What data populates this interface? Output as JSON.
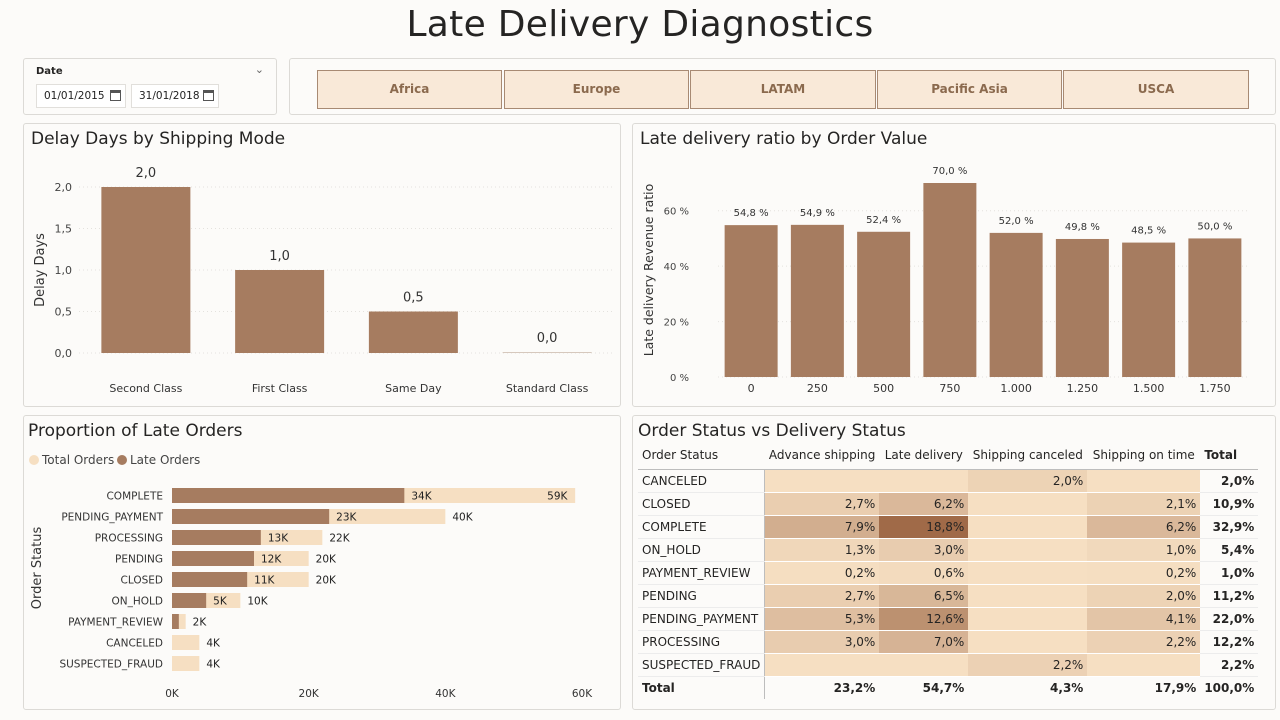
{
  "page": {
    "title": "Late Delivery Diagnostics"
  },
  "date_slicer": {
    "label": "Date",
    "start": "01/01/2015",
    "end": "31/01/2018"
  },
  "regions": [
    "Africa",
    "Europe",
    "LATAM",
    "Pacific Asia",
    "USCA"
  ],
  "colors": {
    "bar": "#a67c60",
    "light": "#f6dfc2",
    "border": "#a88a73"
  },
  "delay_chart": {
    "title": "Delay Days by Shipping Mode",
    "chart_data": {
      "type": "bar",
      "categories": [
        "Second Class",
        "First Class",
        "Same Day",
        "Standard Class"
      ],
      "values": [
        2.0,
        1.0,
        0.5,
        0.0
      ],
      "value_labels": [
        "2,0",
        "1,0",
        "0,5",
        "0,0"
      ],
      "ylabel": "Delay Days",
      "yticks": [
        "0,0",
        "0,5",
        "1,0",
        "1,5",
        "2,0"
      ],
      "ytick_values": [
        0,
        0.5,
        1.0,
        1.5,
        2.0
      ],
      "ylim": [
        0,
        2.0
      ]
    }
  },
  "ratio_chart": {
    "title": "Late delivery ratio by Order Value",
    "chart_data": {
      "type": "bar",
      "categories": [
        "0",
        "250",
        "500",
        "750",
        "1.000",
        "1.250",
        "1.500",
        "1.750"
      ],
      "values": [
        54.8,
        54.9,
        52.4,
        70.0,
        52.0,
        49.8,
        48.5,
        50.0
      ],
      "value_labels": [
        "54,8 %",
        "54,9 %",
        "52,4 %",
        "70,0 %",
        "52,0 %",
        "49,8 %",
        "48,5 %",
        "50,0 %"
      ],
      "ylabel": "Late delivery Revenue ratio",
      "yticks": [
        "0 %",
        "20 %",
        "40 %",
        "60 %"
      ],
      "ytick_values": [
        0,
        20,
        40,
        60
      ],
      "ylim": [
        0,
        70
      ]
    }
  },
  "late_orders_chart": {
    "title": "Proportion of Late Orders",
    "chart_data": {
      "type": "bar",
      "orientation": "horizontal",
      "categories": [
        "COMPLETE",
        "PENDING_PAYMENT",
        "PROCESSING",
        "PENDING",
        "CLOSED",
        "ON_HOLD",
        "PAYMENT_REVIEW",
        "CANCELED",
        "SUSPECTED_FRAUD"
      ],
      "series": [
        {
          "name": "Total Orders",
          "values": [
            59,
            40,
            22,
            20,
            20,
            10,
            2,
            4,
            4
          ],
          "labels": [
            "59K",
            "40K",
            "22K",
            "20K",
            "20K",
            "10K",
            "2K",
            "4K",
            "4K"
          ]
        },
        {
          "name": "Late Orders",
          "values": [
            34,
            23,
            13,
            12,
            11,
            5,
            1,
            0,
            0
          ],
          "labels": [
            "34K",
            "23K",
            "13K",
            "12K",
            "11K",
            "5K",
            "",
            "",
            ""
          ]
        }
      ],
      "ylabel": "Order Status",
      "xticks": [
        "0K",
        "20K",
        "40K",
        "60K"
      ],
      "xtick_values": [
        0,
        20,
        40,
        60
      ],
      "xlim": [
        0,
        60
      ]
    }
  },
  "matrix": {
    "title": "Order Status vs Delivery Status",
    "headers": [
      "Order Status",
      "Advance shipping",
      "Late delivery",
      "Shipping canceled",
      "Shipping on time",
      "Total"
    ],
    "rows": [
      {
        "label": "CANCELED",
        "cells": [
          "",
          "",
          "2,0%",
          ""
        ],
        "total": "2,0%"
      },
      {
        "label": "CLOSED",
        "cells": [
          "2,7%",
          "6,2%",
          "",
          "2,1%"
        ],
        "total": "10,9%"
      },
      {
        "label": "COMPLETE",
        "cells": [
          "7,9%",
          "18,8%",
          "",
          "6,2%"
        ],
        "total": "32,9%"
      },
      {
        "label": "ON_HOLD",
        "cells": [
          "1,3%",
          "3,0%",
          "",
          "1,0%"
        ],
        "total": "5,4%"
      },
      {
        "label": "PAYMENT_REVIEW",
        "cells": [
          "0,2%",
          "0,6%",
          "",
          "0,2%"
        ],
        "total": "1,0%"
      },
      {
        "label": "PENDING",
        "cells": [
          "2,7%",
          "6,5%",
          "",
          "2,0%"
        ],
        "total": "11,2%"
      },
      {
        "label": "PENDING_PAYMENT",
        "cells": [
          "5,3%",
          "12,6%",
          "",
          "4,1%"
        ],
        "total": "22,0%"
      },
      {
        "label": "PROCESSING",
        "cells": [
          "3,0%",
          "7,0%",
          "",
          "2,2%"
        ],
        "total": "12,2%"
      },
      {
        "label": "SUSPECTED_FRAUD",
        "cells": [
          "",
          "",
          "2,2%",
          ""
        ],
        "total": "2,2%"
      }
    ],
    "total_row": {
      "label": "Total",
      "cells": [
        "23,2%",
        "54,7%",
        "4,3%",
        "17,9%"
      ],
      "total": "100,0%"
    }
  }
}
